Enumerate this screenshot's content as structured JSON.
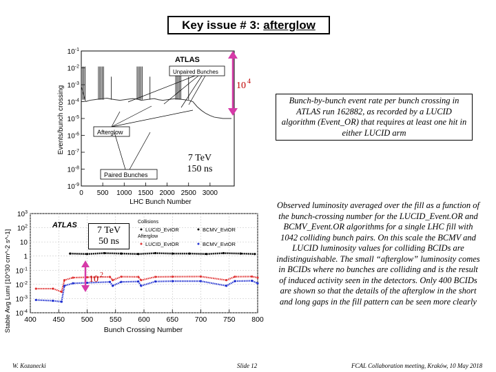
{
  "slide": {
    "title_prefix": "Key issue # 3: ",
    "title_highlight": "afterglow",
    "description_top": "Bunch-by-bunch event rate per bunch crossing in ATLAS run 162882, as recorded by a LUCID algorithm (Event_OR) that requires at least one hit in either LUCID arm",
    "description_bottom": "Observed luminosity averaged over the fill as a function of the bunch-crossing number for the LUCID_Event.OR and BCMV_Event.OR algorithms for a single LHC fill with 1042 colliding bunch pairs. On this scale the BCMV and LUCID luminosity values for colliding BCIDs are indistinguishable. The small “afterglow” luminosity comes in BCIDs where no bunches are colliding and is the result of induced activity seen in the detectors. Only 400 BCIDs are shown so that the details of the afterglow in the short and long gaps in the fill pattern can be seen more clearly",
    "label_energy_1": "7 TeV",
    "label_spacing_1": "150 ns",
    "label_energy_2": "7 TeV",
    "label_spacing_2": "50 ns",
    "ratio_top_base": "10",
    "ratio_top_exp": "4",
    "ratio_bottom_base": "10",
    "ratio_bottom_exp": "2",
    "footer_author": "W. Kozanecki",
    "footer_slide": "Slide 12",
    "footer_meeting": "FCAL Collaboration meeting, Kraków, 10 May 2018",
    "arrow_color": "#d63aa8"
  },
  "chart_data": [
    {
      "type": "line",
      "experiment": "ATLAS",
      "xlabel": "LHC Bunch Number",
      "ylabel": "Events/bunch crossing",
      "xticks": [
        0,
        500,
        1000,
        1500,
        2000,
        2500,
        3000
      ],
      "xtick_labels": [
        "0",
        "500",
        "1000",
        "1500",
        "2000",
        "2500",
        "3000"
      ],
      "ylim": [
        1e-09,
        0.1
      ],
      "yscale": "log",
      "yticks": [
        {
          "base": "10",
          "exp": "-1"
        },
        {
          "base": "10",
          "exp": "-2"
        },
        {
          "base": "10",
          "exp": "-3"
        },
        {
          "base": "10",
          "exp": "-4"
        },
        {
          "base": "10",
          "exp": "-5"
        },
        {
          "base": "10",
          "exp": "-6"
        },
        {
          "base": "10",
          "exp": "-7"
        },
        {
          "base": "10",
          "exp": "-8"
        },
        {
          "base": "10",
          "exp": "-9"
        }
      ],
      "annotations": [
        "Unpaired Bunches",
        "Afterglow",
        "Paired Bunches"
      ],
      "series": [
        {
          "role": "afterglow",
          "x": [
            0,
            100,
            200,
            300,
            400,
            500,
            600,
            700,
            800,
            900,
            1000,
            1100,
            1200,
            1300,
            1400,
            1500,
            1600,
            1700,
            1800,
            1900,
            2000,
            2100,
            2200,
            2300,
            2400,
            2500,
            2600,
            2700,
            2800,
            2900,
            3000,
            3100,
            3200,
            3300,
            3400,
            3500
          ],
          "y": [
            0.0008,
            0.0001,
            0.00012,
            0.00013,
            0.00014,
            0.00015,
            0.00016,
            0.00014,
            0.00013,
            0.00012,
            0.00013,
            0.00014,
            0.00015,
            0.00014,
            0.00012,
            0.00013,
            0.00014,
            0.00015,
            0.00013,
            0.00012,
            0.00013,
            0.00014,
            0.00015,
            0.00014,
            0.00013,
            0.00012,
            0.0001,
            5e-05,
            3e-05,
            2e-05,
            1.5e-05,
            1.2e-05,
            1.1e-05,
            1e-05,
            1e-05,
            1e-05
          ]
        },
        {
          "role": "paired-bunch-peaks",
          "x": [
            30,
            60,
            90,
            400,
            430,
            460,
            490,
            520,
            1300,
            1330,
            1360,
            1390,
            1420,
            2200,
            2230,
            2260,
            2290,
            2320
          ],
          "y": [
            0.012,
            0.012,
            0.012,
            0.012,
            0.012,
            0.012,
            0.012,
            0.012,
            0.012,
            0.012,
            0.012,
            0.012,
            0.012,
            0.012,
            0.012,
            0.012,
            0.012,
            0.012
          ]
        },
        {
          "role": "unpaired-bunch-peaks",
          "x": [
            700,
            1600,
            2500
          ],
          "y": [
            0.003,
            0.003,
            0.003
          ]
        }
      ]
    },
    {
      "type": "scatter",
      "experiment": "ATLAS",
      "xlabel": "Bunch Crossing Number",
      "ylabel": "Stable Avg Lumi [10^30 cm^-2 s^-1]",
      "xlim": [
        400,
        800
      ],
      "xticks": [
        400,
        450,
        500,
        550,
        600,
        650,
        700,
        750,
        800
      ],
      "ylim": [
        0.0001,
        1000.0
      ],
      "yscale": "log",
      "yticks": [
        {
          "base": "10",
          "exp": "3"
        },
        {
          "base": "10",
          "exp": "2"
        },
        {
          "base": "10",
          "exp": ""
        },
        {
          "base": "1",
          "exp": ""
        },
        {
          "base": "10",
          "exp": "-1"
        },
        {
          "base": "10",
          "exp": "-2"
        },
        {
          "base": "10",
          "exp": "-3"
        },
        {
          "base": "10",
          "exp": "-4"
        }
      ],
      "legend": {
        "group1": "Collisions",
        "group2": "Afterglow",
        "items": [
          {
            "name": "LUCID_EvtOR",
            "group": "Collisions",
            "color": "#000000"
          },
          {
            "name": "BCMV_EvtOR",
            "group": "Collisions",
            "color": "#000000"
          },
          {
            "name": "LUCID_EvtOR",
            "group": "Afterglow",
            "color": "#e03030"
          },
          {
            "name": "BCMV_EvtOR",
            "group": "Afterglow",
            "color": "#1f2fd0"
          }
        ]
      },
      "series": [
        {
          "name": "Collisions",
          "color": "#000000",
          "x": [
            470,
            500,
            530,
            560,
            590,
            620,
            650,
            680,
            710,
            740,
            770,
            795
          ],
          "y": [
            1.5,
            1.4,
            1.6,
            1.5,
            1.4,
            1.6,
            1.5,
            1.5,
            1.4,
            1.6,
            1.5,
            1.4
          ]
        },
        {
          "name": "LUCID_EvtOR afterglow",
          "color": "#e03030",
          "x": [
            410,
            440,
            455,
            460,
            475,
            500,
            540,
            545,
            560,
            590,
            595,
            620,
            650,
            700,
            745,
            760,
            790,
            800
          ],
          "y": [
            0.005,
            0.005,
            0.003,
            0.02,
            0.03,
            0.032,
            0.034,
            0.02,
            0.035,
            0.034,
            0.02,
            0.034,
            0.035,
            0.036,
            0.02,
            0.035,
            0.036,
            0.03
          ]
        },
        {
          "name": "BCMV_EvtOR afterglow",
          "color": "#1f2fd0",
          "x": [
            410,
            440,
            455,
            460,
            475,
            500,
            540,
            545,
            560,
            590,
            595,
            620,
            650,
            700,
            745,
            760,
            790,
            800
          ],
          "y": [
            0.0008,
            0.0007,
            0.0006,
            0.008,
            0.012,
            0.013,
            0.015,
            0.008,
            0.015,
            0.016,
            0.008,
            0.016,
            0.017,
            0.017,
            0.008,
            0.017,
            0.018,
            0.012
          ]
        }
      ]
    }
  ]
}
